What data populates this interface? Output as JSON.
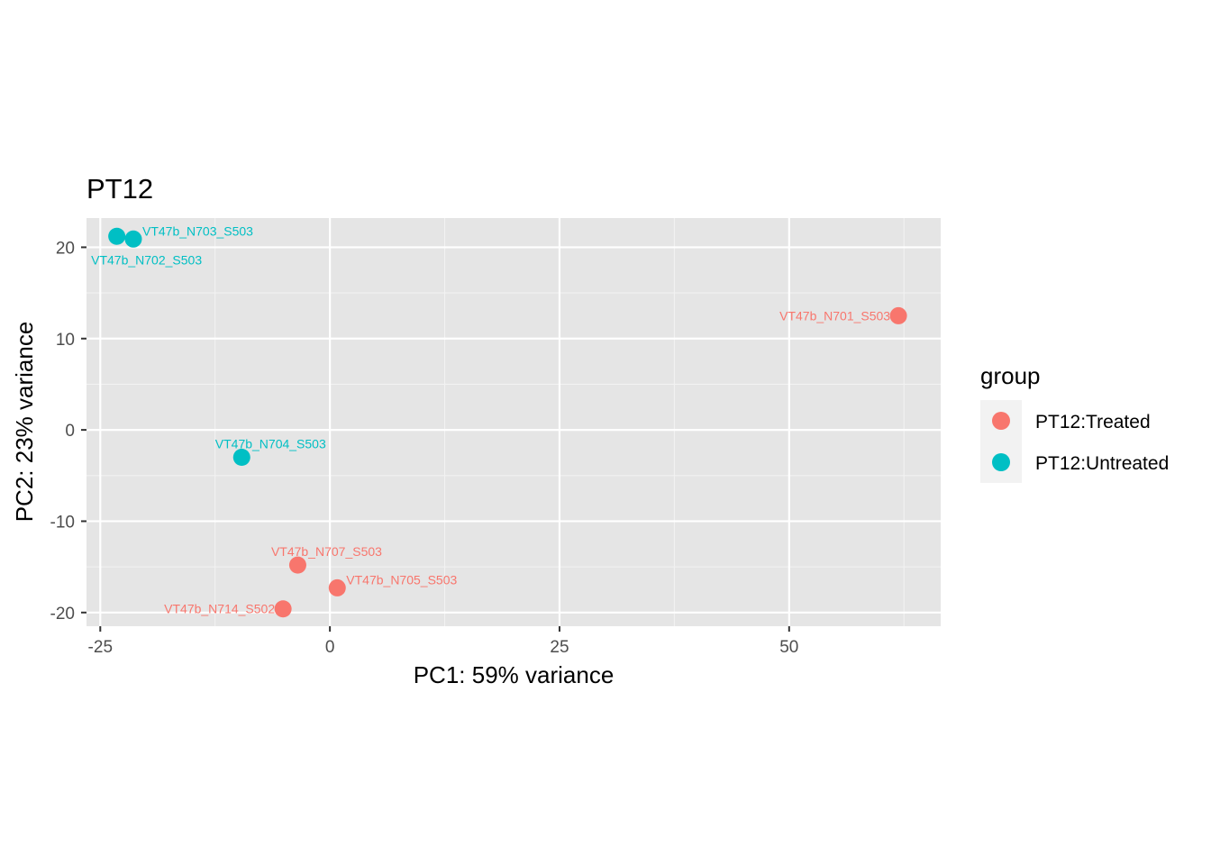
{
  "chart_data": {
    "type": "scatter",
    "title": "PT12",
    "xlabel": "PC1: 59% variance",
    "ylabel": "PC2: 23% variance",
    "xlim": [
      -26.5,
      66.5
    ],
    "ylim": [
      -21.5,
      23.2
    ],
    "xticks": [
      -25,
      0,
      25,
      50
    ],
    "xtick_labels": [
      "-25",
      "0",
      "25",
      "50"
    ],
    "yticks": [
      -20,
      -10,
      0,
      10,
      20
    ],
    "ytick_labels": [
      "-20",
      "-10",
      "0",
      "10",
      "20"
    ],
    "grid": true,
    "legend": {
      "title": "group",
      "position": "right",
      "entries": [
        {
          "label": "PT12:Treated",
          "color": "#F8766D"
        },
        {
          "label": "PT12:Untreated",
          "color": "#00BFC4"
        }
      ]
    },
    "series": [
      {
        "name": "PT12:Treated",
        "color": "#F8766D",
        "points": [
          {
            "x": 61.9,
            "y": 12.5,
            "label": "VT47b_N701_S503",
            "anchor": "end"
          },
          {
            "x": 0.8,
            "y": -17.3,
            "label": "VT47b_N705_S503",
            "anchor": "start"
          },
          {
            "x": -3.5,
            "y": -14.8,
            "label": "VT47b_N707_S503",
            "anchor": "middle"
          },
          {
            "x": -5.1,
            "y": -19.6,
            "label": "VT47b_N714_S502",
            "anchor": "end"
          }
        ]
      },
      {
        "name": "PT12:Untreated",
        "color": "#00BFC4",
        "points": [
          {
            "x": -23.2,
            "y": 21.2,
            "label": "VT47b_N702_S503",
            "anchor": "middle-below"
          },
          {
            "x": -21.4,
            "y": 20.9,
            "label": "VT47b_N703_S503",
            "anchor": "start"
          },
          {
            "x": -9.6,
            "y": -3.0,
            "label": "VT47b_N704_S503",
            "anchor": "middle"
          }
        ]
      }
    ]
  }
}
